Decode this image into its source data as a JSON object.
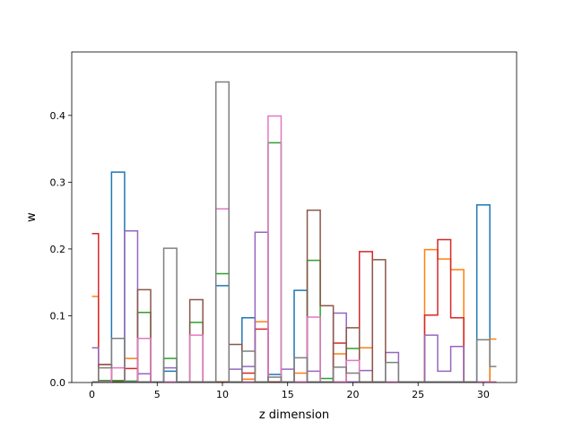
{
  "chart_data": {
    "type": "step",
    "title": "",
    "xlabel": "z dimension",
    "ylabel": "w",
    "xlim": [
      -1.55,
      32.55
    ],
    "ylim": [
      0,
      0.495
    ],
    "xticks": [
      0,
      5,
      10,
      15,
      20,
      25,
      30
    ],
    "yticks": [
      0.0,
      0.1,
      0.2,
      0.3,
      0.4
    ],
    "xtick_labels": [
      "0",
      "5",
      "10",
      "15",
      "20",
      "25",
      "30"
    ],
    "ytick_labels": [
      "0.0",
      "0.1",
      "0.2",
      "0.3",
      "0.4"
    ],
    "grid": false,
    "legend": "none",
    "x": [
      0,
      1,
      2,
      3,
      4,
      5,
      6,
      7,
      8,
      9,
      10,
      11,
      12,
      13,
      14,
      15,
      16,
      17,
      18,
      19,
      20,
      21,
      22,
      23,
      24,
      25,
      26,
      27,
      28,
      29,
      30,
      31
    ],
    "series": [
      {
        "color": "#1f77b4",
        "values": [
          0.001,
          0.002,
          0.315,
          0.002,
          0.001,
          0.001,
          0.017,
          0.001,
          0.001,
          0.001,
          0.145,
          0.001,
          0.097,
          0.001,
          0.012,
          0.001,
          0.138,
          0.001,
          0.001,
          0.001,
          0.001,
          0.001,
          0.001,
          0.001,
          0.001,
          0.001,
          0.001,
          0.001,
          0.001,
          0.001,
          0.266,
          0.001
        ]
      },
      {
        "color": "#ff7f0e",
        "values": [
          0.129,
          0.001,
          0.001,
          0.036,
          0.001,
          0.001,
          0.001,
          0.001,
          0.001,
          0.001,
          0.001,
          0.001,
          0.005,
          0.091,
          0.001,
          0.001,
          0.014,
          0.001,
          0.001,
          0.043,
          0.001,
          0.052,
          0.001,
          0.001,
          0.001,
          0.001,
          0.199,
          0.185,
          0.169,
          0.001,
          0.001,
          0.065
        ]
      },
      {
        "color": "#2ca02c",
        "values": [
          0.001,
          0.003,
          0.003,
          0.002,
          0.105,
          0.001,
          0.036,
          0.001,
          0.09,
          0.001,
          0.163,
          0.001,
          0.001,
          0.001,
          0.359,
          0.001,
          0.001,
          0.183,
          0.006,
          0.001,
          0.051,
          0.001,
          0.001,
          0.001,
          0.001,
          0.001,
          0.001,
          0.001,
          0.001,
          0.001,
          0.001,
          0.001
        ]
      },
      {
        "color": "#d62728",
        "values": [
          0.223,
          0.027,
          0.001,
          0.021,
          0.001,
          0.001,
          0.001,
          0.001,
          0.001,
          0.001,
          0.001,
          0.001,
          0.014,
          0.08,
          0.001,
          0.001,
          0.001,
          0.001,
          0.001,
          0.059,
          0.001,
          0.196,
          0.001,
          0.001,
          0.001,
          0.001,
          0.101,
          0.214,
          0.097,
          0.001,
          0.001,
          0.001
        ]
      },
      {
        "color": "#9467bd",
        "values": [
          0.052,
          0.001,
          0.001,
          0.227,
          0.013,
          0.001,
          0.022,
          0.001,
          0.001,
          0.001,
          0.001,
          0.02,
          0.024,
          0.225,
          0.001,
          0.02,
          0.001,
          0.017,
          0.001,
          0.104,
          0.001,
          0.018,
          0.001,
          0.045,
          0.001,
          0.001,
          0.071,
          0.017,
          0.054,
          0.001,
          0.001,
          0.001
        ]
      },
      {
        "color": "#8c564b",
        "values": [
          0.001,
          0.027,
          0.001,
          0.001,
          0.139,
          0.001,
          0.001,
          0.001,
          0.124,
          0.001,
          0.001,
          0.057,
          0.001,
          0.001,
          0.001,
          0.001,
          0.001,
          0.258,
          0.115,
          0.001,
          0.082,
          0.001,
          0.184,
          0.001,
          0.001,
          0.001,
          0.001,
          0.001,
          0.001,
          0.001,
          0.001,
          0.001
        ]
      },
      {
        "color": "#e377c2",
        "values": [
          0.001,
          0.001,
          0.022,
          0.001,
          0.066,
          0.001,
          0.001,
          0.001,
          0.071,
          0.001,
          0.26,
          0.001,
          0.001,
          0.001,
          0.399,
          0.001,
          0.001,
          0.098,
          0.001,
          0.001,
          0.033,
          0.001,
          0.001,
          0.001,
          0.001,
          0.001,
          0.001,
          0.001,
          0.001,
          0.001,
          0.001,
          0.001
        ]
      },
      {
        "color": "#7f7f7f",
        "values": [
          0.001,
          0.022,
          0.066,
          0.001,
          0.001,
          0.001,
          0.201,
          0.001,
          0.001,
          0.001,
          0.45,
          0.001,
          0.047,
          0.001,
          0.008,
          0.001,
          0.037,
          0.001,
          0.001,
          0.023,
          0.014,
          0.001,
          0.001,
          0.03,
          0.001,
          0.001,
          0.001,
          0.001,
          0.001,
          0.001,
          0.064,
          0.024
        ]
      }
    ]
  }
}
